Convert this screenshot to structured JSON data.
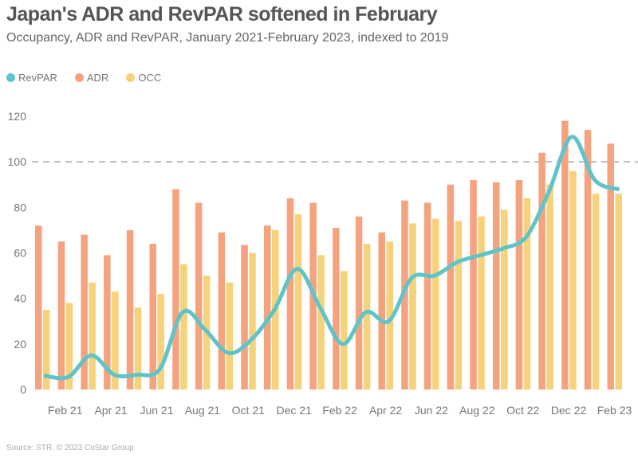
{
  "title": "Japan's ADR and RevPAR softened in February",
  "subtitle": "Occupancy, ADR and RevPAR, January 2021-February 2023, indexed to 2019",
  "source": "Source: STR. © 2023 CoStar Group",
  "colors": {
    "RevPAR": "#5fc4c9",
    "ADR": "#f5a27e",
    "OCC": "#f6d27a",
    "reference": "#bbbbbb"
  },
  "chart_data": {
    "type": "bar",
    "title": "Japan's ADR and RevPAR softened in February",
    "xlabel": "",
    "ylabel": "",
    "ylim": [
      0,
      120
    ],
    "yticks": [
      0,
      20,
      40,
      60,
      80,
      100,
      120
    ],
    "reference_line": 100,
    "legend_position": "top-left",
    "categories": [
      "Jan 21",
      "Feb 21",
      "Mar 21",
      "Apr 21",
      "May 21",
      "Jun 21",
      "Jul 21",
      "Aug 21",
      "Sep 21",
      "Oct 21",
      "Nov 21",
      "Dec 21",
      "Jan 22",
      "Feb 22",
      "Mar 22",
      "Apr 22",
      "May 22",
      "Jun 22",
      "Jul 22",
      "Aug 22",
      "Sep 22",
      "Oct 22",
      "Nov 22",
      "Dec 22",
      "Jan 23",
      "Feb 23"
    ],
    "xtick_labels": [
      "Feb 21",
      "Apr 21",
      "Jun 21",
      "Aug 21",
      "Oct 21",
      "Dec 21",
      "Feb 22",
      "Apr 22",
      "Jun 22",
      "Aug 22",
      "Oct 22",
      "Dec 22",
      "Feb 23"
    ],
    "series": [
      {
        "name": "RevPAR",
        "type": "line",
        "values": [
          6,
          5.5,
          15,
          6.5,
          6.5,
          9,
          34,
          26,
          16,
          22,
          35,
          53,
          36,
          20,
          34,
          30,
          49,
          50,
          56,
          59,
          62,
          67,
          87,
          111,
          92,
          88
        ]
      },
      {
        "name": "ADR",
        "type": "bar",
        "values": [
          72,
          65,
          68,
          59,
          70,
          64,
          88,
          82,
          69,
          63.5,
          72,
          84,
          82,
          71,
          76,
          69,
          83,
          82,
          90,
          92,
          91,
          92,
          104,
          118,
          114,
          108
        ]
      },
      {
        "name": "OCC",
        "type": "bar",
        "values": [
          35,
          38,
          47,
          43,
          36,
          42,
          55,
          50,
          47,
          60,
          70,
          77,
          59,
          52,
          64,
          65,
          73,
          75,
          74,
          76,
          79,
          84,
          90,
          96,
          86,
          86
        ]
      }
    ]
  }
}
